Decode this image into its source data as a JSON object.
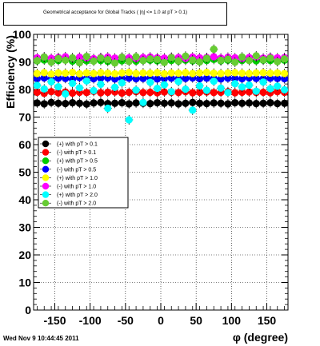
{
  "chart_data": {
    "type": "scatter",
    "title": "Geometrical acceptance for Global Tracks ( |η| <= 1.0 at pT > 0.1)",
    "xlabel": "φ (degree)",
    "ylabel": "Efficiency (%)",
    "xlim": [
      -180,
      180
    ],
    "ylim": [
      0,
      100
    ],
    "x_ticks": [
      -150,
      -100,
      -50,
      0,
      50,
      100,
      150
    ],
    "y_ticks": [
      0,
      10,
      20,
      30,
      40,
      50,
      60,
      70,
      80,
      90,
      100
    ],
    "grid": true,
    "legend_position": "left",
    "x": [
      -175,
      -165,
      -155,
      -145,
      -135,
      -125,
      -115,
      -105,
      -95,
      -85,
      -75,
      -65,
      -55,
      -45,
      -35,
      -25,
      -15,
      -5,
      5,
      15,
      25,
      35,
      45,
      55,
      65,
      75,
      85,
      95,
      105,
      115,
      125,
      135,
      145,
      155,
      165,
      175
    ],
    "series": [
      {
        "name": "(+) with pT > 0.1",
        "color": "#000000",
        "values": [
          75.1,
          74.8,
          75.3,
          75.0,
          74.9,
          75.2,
          75.0,
          74.7,
          75.1,
          75.3,
          74.9,
          75.0,
          75.2,
          74.8,
          75.1,
          75.0,
          74.9,
          75.2,
          75.0,
          75.1,
          74.8,
          75.0,
          75.3,
          75.0,
          74.9,
          75.1,
          75.0,
          74.8,
          75.2,
          75.0,
          75.1,
          74.9,
          75.0,
          75.2,
          74.9,
          75.0
        ]
      },
      {
        "name": "(-) with pT > 0.1",
        "color": "#ff0000",
        "values": [
          79.0,
          78.6,
          79.2,
          78.8,
          79.1,
          78.7,
          79.0,
          78.9,
          79.3,
          78.8,
          79.0,
          79.1,
          78.7,
          79.0,
          79.2,
          78.9,
          79.0,
          78.8,
          79.1,
          79.0,
          78.9,
          79.2,
          78.8,
          79.0,
          79.1,
          78.9,
          79.0,
          79.2,
          78.8,
          79.0,
          79.1,
          78.9,
          79.0,
          78.8,
          79.2,
          79.0
        ]
      },
      {
        "name": "(+) with pT > 0.5",
        "color": "#00cc00",
        "values": [
          90.4,
          90.7,
          90.2,
          90.5,
          90.8,
          90.3,
          90.6,
          90.4,
          90.9,
          90.5,
          90.2,
          90.6,
          90.4,
          90.7,
          90.3,
          90.5,
          90.6,
          90.4,
          90.8,
          90.5,
          90.3,
          90.6,
          90.4,
          90.7,
          90.5,
          90.9,
          90.4,
          90.6,
          90.3,
          90.5,
          90.7,
          90.4,
          90.6,
          90.5,
          90.3,
          90.6
        ]
      },
      {
        "name": "(-) with pT > 0.5",
        "color": "#0000ff",
        "values": [
          83.9,
          84.2,
          83.8,
          84.1,
          84.0,
          83.7,
          84.3,
          84.0,
          83.9,
          84.1,
          84.2,
          83.8,
          84.0,
          84.1,
          83.9,
          84.0,
          84.2,
          83.8,
          84.0,
          84.1,
          83.9,
          84.0,
          84.2,
          83.9,
          84.1,
          84.0,
          83.8,
          84.1,
          84.0,
          83.9,
          84.2,
          84.0,
          83.9,
          84.1,
          84.0,
          83.9
        ]
      },
      {
        "name": "(+) with pT > 1.0",
        "color": "#ffff00",
        "values": [
          85.8,
          86.1,
          85.6,
          86.0,
          85.9,
          86.2,
          85.7,
          86.0,
          85.8,
          86.1,
          85.9,
          85.7,
          86.0,
          86.2,
          85.8,
          86.0,
          85.9,
          86.1,
          85.7,
          86.0,
          85.9,
          86.1,
          85.8,
          86.0,
          86.2,
          85.9,
          85.8,
          86.0,
          86.1,
          85.9,
          85.8,
          86.0,
          86.1,
          85.9,
          86.0,
          85.8
        ]
      },
      {
        "name": "(-) with pT > 1.0",
        "color": "#ff00ff",
        "values": [
          91.5,
          91.8,
          91.3,
          91.6,
          91.9,
          91.4,
          91.7,
          91.5,
          91.2,
          91.6,
          91.8,
          91.4,
          91.7,
          91.5,
          91.3,
          91.6,
          91.8,
          91.5,
          91.4,
          91.7,
          91.6,
          91.3,
          91.8,
          91.5,
          91.6,
          91.9,
          91.4,
          91.7,
          91.5,
          91.3,
          91.6,
          91.8,
          91.4,
          91.7,
          91.5,
          91.6
        ]
      },
      {
        "name": "(+) with pT > 2.0",
        "color": "#00ffff",
        "values": [
          81.5,
          80.2,
          82.8,
          81.0,
          78.4,
          82.2,
          80.6,
          83.1,
          79.6,
          81.9,
          73.2,
          80.8,
          82.4,
          69.0,
          79.8,
          75.3,
          82.6,
          80.4,
          81.7,
          79.2,
          82.9,
          80.1,
          72.5,
          81.3,
          79.7,
          83.0,
          80.5,
          78.9,
          82.1,
          80.9,
          81.6,
          79.4,
          82.7,
          80.3,
          81.2,
          79.9
        ]
      },
      {
        "name": "(-) with pT > 2.0",
        "color": "#66cc33",
        "values": [
          90.5,
          91.8,
          89.9,
          91.2,
          90.6,
          91.5,
          89.7,
          92.0,
          90.3,
          91.4,
          90.8,
          89.6,
          91.7,
          90.2,
          91.9,
          90.5,
          91.1,
          90.9,
          89.8,
          91.6,
          90.4,
          92.1,
          90.7,
          90.0,
          91.3,
          94.6,
          90.6,
          91.0,
          89.9,
          91.8,
          90.5,
          92.2,
          90.8,
          91.4,
          90.1,
          91.1
        ]
      }
    ]
  },
  "footer": {
    "timestamp": "Wed Nov  9 10:44:45 2011"
  }
}
